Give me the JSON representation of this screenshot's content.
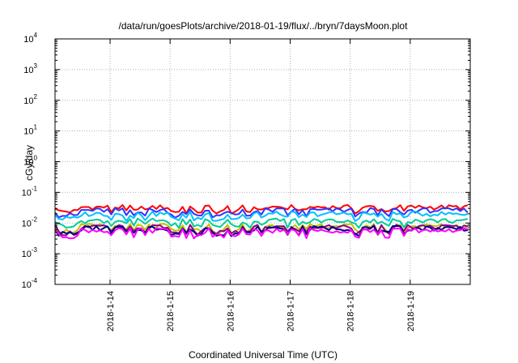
{
  "chart_data": {
    "type": "line",
    "title": "/data/run/goesPlots/archive/2018-01-19/flux/../bryn/7daysMoon.plot",
    "xlabel": "Coordinated Universal Time (UTC)",
    "ylabel": "cGy/day",
    "y_scale": "log",
    "ylim": [
      0.0001,
      10000
    ],
    "xlim": [
      "2018-01-13 02:00",
      "2018-01-20 00:00"
    ],
    "x_ticks": [
      "2018-1-14",
      "2018-1-15",
      "2018-1-16",
      "2018-1-17",
      "2018-1-18",
      "2018-1-19"
    ],
    "y_ticks": [
      {
        "base": "10",
        "exp": "-4"
      },
      {
        "base": "10",
        "exp": "-3"
      },
      {
        "base": "10",
        "exp": "-2"
      },
      {
        "base": "10",
        "exp": "-1"
      },
      {
        "base": "10",
        "exp": "0"
      },
      {
        "base": "10",
        "exp": "1"
      },
      {
        "base": "10",
        "exp": "2"
      },
      {
        "base": "10",
        "exp": "3"
      },
      {
        "base": "10",
        "exp": "4"
      }
    ],
    "grid": true,
    "legend": "none",
    "x_start_utc": "2018-01-13 02:00",
    "x_step_hours": 1.5,
    "series": [
      {
        "color": "#ff0000",
        "base_value": 0.033,
        "dip_value": 0.024
      },
      {
        "color": "#3333ff",
        "base_value": 0.026,
        "dip_value": 0.018
      },
      {
        "color": "#00c0ff",
        "base_value": 0.02,
        "dip_value": 0.014
      },
      {
        "color": "#00cc99",
        "base_value": 0.012,
        "dip_value": 0.0085
      },
      {
        "color": "#c0c000",
        "base_value": 0.008,
        "dip_value": 0.0055
      },
      {
        "color": "#8b008b",
        "base_value": 0.0075,
        "dip_value": 0.0048
      },
      {
        "color": "#000080",
        "base_value": 0.0068,
        "dip_value": 0.0045
      },
      {
        "color": "#ff00ff",
        "base_value": 0.0058,
        "dip_value": 0.0038
      }
    ]
  }
}
